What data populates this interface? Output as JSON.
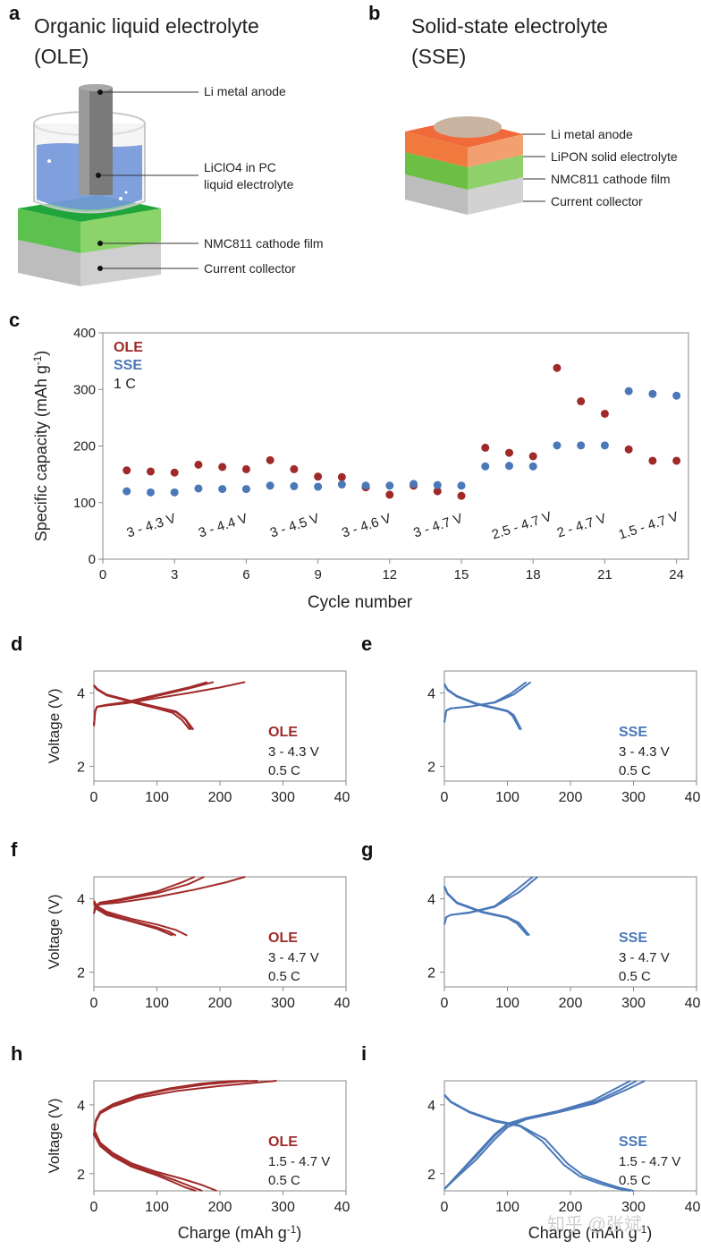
{
  "panel_a": {
    "letter": "a",
    "title_line1": "Organic liquid electrolyte",
    "title_line2": "(OLE)",
    "callouts": [
      "Li metal anode",
      "LiClO4 in PC",
      "liquid electrolyte",
      "NMC811 cathode film",
      "Current collector"
    ]
  },
  "panel_b": {
    "letter": "b",
    "title_line1": "Solid-state electrolyte",
    "title_line2": "(SSE)",
    "callouts": [
      "Li metal anode",
      "LiPON solid electrolyte",
      "NMC811 cathode film",
      "Current collector"
    ]
  },
  "colors": {
    "ole": "#a02a2a",
    "sse": "#4a78b8",
    "frame": "#8a8a8a"
  },
  "chart_data": [
    {
      "letter": "c",
      "type": "scatter",
      "xlabel": "Cycle number",
      "ylabel": "Specific capacity (mAh g-1)",
      "xlim": [
        0,
        24.5
      ],
      "ylim": [
        0,
        400
      ],
      "xticks": [
        0,
        3,
        6,
        9,
        12,
        15,
        18,
        21,
        24
      ],
      "yticks": [
        0,
        100,
        200,
        300,
        400
      ],
      "legend": [
        "OLE",
        "SSE",
        "1 C"
      ],
      "series": [
        {
          "name": "OLE",
          "x": [
            1,
            2,
            3,
            4,
            5,
            6,
            7,
            8,
            9,
            10,
            11,
            12,
            13,
            14,
            15,
            16,
            17,
            18,
            19,
            20,
            21,
            22,
            23,
            24
          ],
          "values": [
            157,
            155,
            153,
            167,
            163,
            159,
            175,
            159,
            146,
            145,
            127,
            114,
            130,
            120,
            112,
            197,
            188,
            182,
            338,
            279,
            257,
            194,
            174,
            174
          ]
        },
        {
          "name": "SSE",
          "x": [
            1,
            2,
            3,
            4,
            5,
            6,
            7,
            8,
            9,
            10,
            11,
            12,
            13,
            14,
            15,
            16,
            17,
            18,
            19,
            20,
            21,
            22,
            23,
            24
          ],
          "values": [
            120,
            118,
            118,
            125,
            124,
            124,
            130,
            129,
            128,
            132,
            130,
            130,
            133,
            131,
            130,
            164,
            165,
            164,
            201,
            201,
            201,
            297,
            292,
            289
          ]
        }
      ],
      "range_labels": [
        "3 - 4.3 V",
        "3 - 4.4 V",
        "3 - 4.5 V",
        "3 - 4.6 V",
        "3 - 4.7 V",
        "2.5 - 4.7 V",
        "2 - 4.7 V",
        "1.5 - 4.7 V"
      ]
    },
    {
      "letter": "d",
      "type": "line",
      "electrolyte": "OLE",
      "range": "3 - 4.3 V",
      "rate": "0.5 C",
      "xlabel": "",
      "ylabel": "Voltage (V)",
      "xlim": [
        0,
        400
      ],
      "ylim": [
        1.6,
        4.6
      ],
      "xticks": [
        0,
        100,
        200,
        300,
        400
      ],
      "yticks": [
        2,
        4
      ],
      "series": [
        {
          "name": "charge 1",
          "x": [
            0,
            2,
            5,
            20,
            50,
            100,
            150,
            200,
            240
          ],
          "values": [
            3.1,
            3.5,
            3.62,
            3.66,
            3.72,
            3.86,
            4.0,
            4.15,
            4.3
          ]
        },
        {
          "name": "charge 2",
          "x": [
            0,
            2,
            5,
            20,
            50,
            100,
            150,
            190
          ],
          "values": [
            3.1,
            3.5,
            3.63,
            3.67,
            3.74,
            3.92,
            4.12,
            4.3
          ]
        },
        {
          "name": "charge 3",
          "x": [
            0,
            2,
            5,
            20,
            50,
            100,
            150,
            180
          ],
          "values": [
            3.1,
            3.5,
            3.63,
            3.68,
            3.75,
            3.95,
            4.15,
            4.3
          ]
        },
        {
          "name": "discharge 1",
          "x": [
            0,
            5,
            20,
            60,
            100,
            130,
            145,
            158
          ],
          "values": [
            4.22,
            4.12,
            3.96,
            3.78,
            3.62,
            3.5,
            3.3,
            3.0
          ]
        },
        {
          "name": "discharge 2",
          "x": [
            0,
            5,
            20,
            60,
            100,
            130,
            145,
            155
          ],
          "values": [
            4.2,
            4.1,
            3.95,
            3.76,
            3.6,
            3.48,
            3.28,
            3.0
          ]
        },
        {
          "name": "discharge 3",
          "x": [
            0,
            5,
            20,
            60,
            100,
            125,
            140,
            152
          ],
          "values": [
            4.2,
            4.1,
            3.94,
            3.75,
            3.58,
            3.46,
            3.26,
            3.0
          ]
        }
      ]
    },
    {
      "letter": "e",
      "type": "line",
      "electrolyte": "SSE",
      "range": "3 - 4.3 V",
      "rate": "0.5 C",
      "xlabel": "",
      "ylabel": "",
      "xlim": [
        0,
        400
      ],
      "ylim": [
        1.6,
        4.6
      ],
      "xticks": [
        0,
        100,
        200,
        300,
        400
      ],
      "yticks": [
        2,
        4
      ],
      "series": [
        {
          "name": "charge 1",
          "x": [
            0,
            3,
            10,
            40,
            80,
            110,
            137
          ],
          "values": [
            3.2,
            3.52,
            3.58,
            3.63,
            3.74,
            3.96,
            4.3
          ]
        },
        {
          "name": "charge 2",
          "x": [
            0,
            3,
            10,
            40,
            80,
            105,
            130
          ],
          "values": [
            3.2,
            3.52,
            3.58,
            3.63,
            3.75,
            3.98,
            4.3
          ]
        },
        {
          "name": "discharge 1",
          "x": [
            0,
            5,
            20,
            50,
            80,
            100,
            110,
            122
          ],
          "values": [
            4.25,
            4.1,
            3.92,
            3.72,
            3.6,
            3.52,
            3.4,
            3.0
          ]
        },
        {
          "name": "discharge 2",
          "x": [
            0,
            5,
            20,
            50,
            80,
            100,
            108,
            120
          ],
          "values": [
            4.23,
            4.08,
            3.9,
            3.7,
            3.58,
            3.5,
            3.38,
            3.0
          ]
        }
      ]
    },
    {
      "letter": "f",
      "type": "line",
      "electrolyte": "OLE",
      "range": "3 - 4.7 V",
      "rate": "0.5 C",
      "xlabel": "",
      "ylabel": "Voltage (V)",
      "xlim": [
        0,
        400
      ],
      "ylim": [
        1.6,
        4.6
      ],
      "xticks": [
        0,
        100,
        200,
        300,
        400
      ],
      "yticks": [
        2,
        4
      ],
      "series": [
        {
          "name": "charge 1",
          "x": [
            0,
            3,
            10,
            40,
            100,
            160,
            210,
            240
          ],
          "values": [
            3.6,
            3.78,
            3.85,
            3.9,
            4.05,
            4.25,
            4.45,
            4.6
          ]
        },
        {
          "name": "charge 2",
          "x": [
            0,
            3,
            10,
            40,
            100,
            150,
            175
          ],
          "values": [
            3.6,
            3.8,
            3.88,
            3.95,
            4.15,
            4.4,
            4.6
          ]
        },
        {
          "name": "charge 3",
          "x": [
            0,
            3,
            10,
            40,
            100,
            140,
            160
          ],
          "values": [
            3.6,
            3.8,
            3.9,
            3.98,
            4.2,
            4.45,
            4.6
          ]
        },
        {
          "name": "discharge 1",
          "x": [
            0,
            5,
            20,
            60,
            100,
            130,
            148
          ],
          "values": [
            3.95,
            3.8,
            3.65,
            3.45,
            3.3,
            3.15,
            3.0
          ]
        },
        {
          "name": "discharge 2",
          "x": [
            0,
            5,
            20,
            60,
            100,
            120,
            130
          ],
          "values": [
            3.9,
            3.75,
            3.6,
            3.4,
            3.22,
            3.1,
            3.0
          ]
        },
        {
          "name": "discharge 3",
          "x": [
            0,
            5,
            20,
            60,
            100,
            115,
            125
          ],
          "values": [
            3.88,
            3.72,
            3.56,
            3.38,
            3.18,
            3.07,
            3.0
          ]
        }
      ]
    },
    {
      "letter": "g",
      "type": "line",
      "electrolyte": "SSE",
      "range": "3 - 4.7 V",
      "rate": "0.5 C",
      "xlabel": "",
      "ylabel": "",
      "xlim": [
        0,
        400
      ],
      "ylim": [
        1.6,
        4.6
      ],
      "xticks": [
        0,
        100,
        200,
        300,
        400
      ],
      "yticks": [
        2,
        4
      ],
      "series": [
        {
          "name": "charge 1",
          "x": [
            0,
            3,
            10,
            40,
            80,
            120,
            148
          ],
          "values": [
            3.3,
            3.5,
            3.56,
            3.62,
            3.78,
            4.2,
            4.6
          ]
        },
        {
          "name": "charge 2",
          "x": [
            0,
            3,
            10,
            40,
            80,
            115,
            140
          ],
          "values": [
            3.3,
            3.5,
            3.56,
            3.63,
            3.8,
            4.25,
            4.6
          ]
        },
        {
          "name": "discharge 1",
          "x": [
            0,
            5,
            20,
            60,
            100,
            118,
            135
          ],
          "values": [
            4.35,
            4.15,
            3.9,
            3.65,
            3.5,
            3.35,
            3.0
          ]
        },
        {
          "name": "discharge 2",
          "x": [
            0,
            5,
            20,
            60,
            100,
            115,
            132
          ],
          "values": [
            4.33,
            4.13,
            3.88,
            3.63,
            3.48,
            3.33,
            3.0
          ]
        }
      ]
    },
    {
      "letter": "h",
      "type": "line",
      "electrolyte": "OLE",
      "range": "1.5 - 4.7 V",
      "rate": "0.5 C",
      "xlabel": "Charge (mAh g-1)",
      "ylabel": "Voltage (V)",
      "xlim": [
        0,
        400
      ],
      "ylim": [
        1.5,
        4.7
      ],
      "xticks": [
        0,
        100,
        200,
        300,
        400
      ],
      "yticks": [
        2,
        4
      ],
      "series": [
        {
          "name": "charge 1",
          "x": [
            0,
            3,
            10,
            30,
            70,
            130,
            200,
            260,
            290
          ],
          "values": [
            3.1,
            3.5,
            3.75,
            3.95,
            4.2,
            4.4,
            4.55,
            4.65,
            4.7
          ]
        },
        {
          "name": "charge 2",
          "x": [
            0,
            3,
            10,
            30,
            70,
            120,
            180,
            230,
            260
          ],
          "values": [
            3.1,
            3.52,
            3.78,
            4.0,
            4.25,
            4.45,
            4.6,
            4.68,
            4.7
          ]
        },
        {
          "name": "charge 3",
          "x": [
            0,
            3,
            10,
            30,
            70,
            120,
            170,
            215,
            245
          ],
          "values": [
            3.1,
            3.55,
            3.8,
            4.02,
            4.28,
            4.48,
            4.62,
            4.69,
            4.7
          ]
        },
        {
          "name": "discharge 1",
          "x": [
            0,
            10,
            30,
            60,
            100,
            140,
            170,
            195
          ],
          "values": [
            3.3,
            2.9,
            2.6,
            2.3,
            2.05,
            1.85,
            1.68,
            1.5
          ]
        },
        {
          "name": "discharge 2",
          "x": [
            0,
            10,
            30,
            60,
            100,
            130,
            155,
            172
          ],
          "values": [
            3.2,
            2.85,
            2.55,
            2.25,
            2.0,
            1.8,
            1.62,
            1.5
          ]
        },
        {
          "name": "discharge 3",
          "x": [
            0,
            10,
            30,
            60,
            100,
            125,
            145,
            162
          ],
          "values": [
            3.15,
            2.8,
            2.5,
            2.2,
            1.95,
            1.76,
            1.6,
            1.5
          ]
        }
      ]
    },
    {
      "letter": "i",
      "type": "line",
      "electrolyte": "SSE",
      "range": "1.5 - 4.7 V",
      "rate": "0.5 C",
      "xlabel": "Charge (mAh g-1)",
      "ylabel": "",
      "xlim": [
        0,
        400
      ],
      "ylim": [
        1.5,
        4.7
      ],
      "xticks": [
        0,
        100,
        200,
        300,
        400
      ],
      "yticks": [
        2,
        4
      ],
      "series": [
        {
          "name": "charge 1",
          "x": [
            0,
            20,
            50,
            80,
            100,
            130,
            180,
            240,
            290,
            318
          ],
          "values": [
            1.55,
            1.9,
            2.4,
            3.0,
            3.35,
            3.58,
            3.78,
            4.05,
            4.45,
            4.7
          ]
        },
        {
          "name": "charge 2",
          "x": [
            0,
            20,
            50,
            80,
            100,
            130,
            180,
            240,
            280,
            305
          ],
          "values": [
            1.55,
            1.95,
            2.5,
            3.1,
            3.42,
            3.6,
            3.8,
            4.1,
            4.45,
            4.7
          ]
        },
        {
          "name": "charge 3",
          "x": [
            0,
            20,
            50,
            80,
            100,
            130,
            180,
            235,
            272,
            295
          ],
          "values": [
            1.55,
            1.95,
            2.55,
            3.15,
            3.45,
            3.62,
            3.82,
            4.12,
            4.48,
            4.7
          ]
        },
        {
          "name": "discharge 1",
          "x": [
            0,
            10,
            40,
            80,
            120,
            160,
            195,
            220,
            250,
            280,
            300
          ],
          "values": [
            4.3,
            4.1,
            3.8,
            3.55,
            3.4,
            3.0,
            2.3,
            1.95,
            1.75,
            1.58,
            1.5
          ]
        },
        {
          "name": "discharge 2",
          "x": [
            0,
            10,
            40,
            80,
            120,
            155,
            190,
            215,
            245,
            275,
            295
          ],
          "values": [
            4.28,
            4.08,
            3.78,
            3.52,
            3.38,
            2.95,
            2.25,
            1.92,
            1.72,
            1.56,
            1.5
          ]
        }
      ]
    }
  ],
  "watermark": "知乎 @张斌"
}
